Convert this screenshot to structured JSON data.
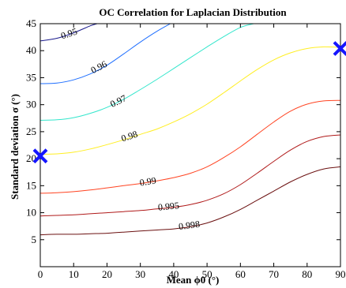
{
  "chart_data": {
    "type": "contour",
    "title": "OC Correlation for Laplacian Distribution",
    "xlabel": "Mean  ϕ0 (°)",
    "ylabel": "Standard deviation    σ (°)",
    "xlim": [
      0,
      90
    ],
    "ylim": [
      0,
      45
    ],
    "xticks": [
      0,
      10,
      20,
      30,
      40,
      50,
      60,
      70,
      80,
      90
    ],
    "yticks": [
      5,
      10,
      15,
      20,
      25,
      30,
      35,
      40,
      45
    ],
    "grid": false,
    "levels": [
      {
        "level": "0.95",
        "color": "#1a1a8c",
        "points": [
          [
            0,
            41.8
          ],
          [
            5,
            42.3
          ],
          [
            10,
            43.3
          ],
          [
            15,
            44.6
          ],
          [
            17,
            45
          ]
        ],
        "label_at": [
          8.7,
          43.0
        ]
      },
      {
        "level": "0.96",
        "color": "#1f6fff",
        "points": [
          [
            0,
            33.9
          ],
          [
            5,
            34
          ],
          [
            10,
            34.6
          ],
          [
            15,
            35.7
          ],
          [
            20,
            37.3
          ],
          [
            25,
            39.4
          ],
          [
            30,
            41.6
          ],
          [
            35,
            43.6
          ],
          [
            39,
            45
          ]
        ],
        "label_at": [
          17.7,
          36.8
        ]
      },
      {
        "level": "0.97",
        "color": "#33e6cc",
        "points": [
          [
            0,
            27.1
          ],
          [
            5,
            27.2
          ],
          [
            10,
            27.6
          ],
          [
            15,
            28.4
          ],
          [
            20,
            29.5
          ],
          [
            25,
            31
          ],
          [
            30,
            32.8
          ],
          [
            35,
            34.7
          ],
          [
            40,
            36.7
          ],
          [
            45,
            38.7
          ],
          [
            50,
            40.7
          ],
          [
            55,
            42.6
          ],
          [
            60,
            44.3
          ],
          [
            64,
            45
          ]
        ],
        "label_at": [
          23.5,
          30.5
        ]
      },
      {
        "level": "0.98",
        "color": "#ffee22",
        "points": [
          [
            0,
            20.8
          ],
          [
            5,
            20.9
          ],
          [
            10,
            21.2
          ],
          [
            15,
            21.8
          ],
          [
            20,
            22.6
          ],
          [
            25,
            23.5
          ],
          [
            30,
            24.5
          ],
          [
            35,
            25.5
          ],
          [
            40,
            26.8
          ],
          [
            45,
            28.3
          ],
          [
            50,
            30.1
          ],
          [
            55,
            32.2
          ],
          [
            60,
            34.4
          ],
          [
            65,
            36.5
          ],
          [
            70,
            38.3
          ],
          [
            75,
            39.6
          ],
          [
            80,
            40.4
          ],
          [
            85,
            40.7
          ],
          [
            90,
            40.6
          ]
        ],
        "label_at": [
          26.8,
          24.0
        ]
      },
      {
        "level": "0.99",
        "color": "#ff4422",
        "points": [
          [
            0,
            13.6
          ],
          [
            5,
            13.7
          ],
          [
            10,
            13.9
          ],
          [
            15,
            14.2
          ],
          [
            20,
            14.6
          ],
          [
            25,
            15
          ],
          [
            30,
            15.4
          ],
          [
            35,
            15.9
          ],
          [
            40,
            16.5
          ],
          [
            45,
            17.3
          ],
          [
            50,
            18.5
          ],
          [
            55,
            20.2
          ],
          [
            60,
            22.2
          ],
          [
            65,
            24.5
          ],
          [
            70,
            26.8
          ],
          [
            75,
            28.8
          ],
          [
            80,
            30.1
          ],
          [
            85,
            30.7
          ],
          [
            90,
            30.8
          ]
        ],
        "label_at": [
          32.3,
          15.6
        ]
      },
      {
        "level": "0.995",
        "color": "#b01a1a",
        "points": [
          [
            0,
            9.4
          ],
          [
            5,
            9.5
          ],
          [
            10,
            9.6
          ],
          [
            15,
            9.8
          ],
          [
            20,
            10
          ],
          [
            25,
            10.2
          ],
          [
            30,
            10.4
          ],
          [
            35,
            10.7
          ],
          [
            40,
            11
          ],
          [
            45,
            11.5
          ],
          [
            50,
            12.3
          ],
          [
            55,
            13.5
          ],
          [
            60,
            15.2
          ],
          [
            65,
            17.3
          ],
          [
            70,
            19.5
          ],
          [
            75,
            21.6
          ],
          [
            80,
            23.2
          ],
          [
            85,
            24.1
          ],
          [
            90,
            24.4
          ]
        ],
        "label_at": [
          38.5,
          11.0
        ]
      },
      {
        "level": "0.998",
        "color": "#6b1010",
        "points": [
          [
            0,
            5.9
          ],
          [
            5,
            6
          ],
          [
            10,
            6
          ],
          [
            15,
            6.1
          ],
          [
            20,
            6.2
          ],
          [
            25,
            6.4
          ],
          [
            30,
            6.6
          ],
          [
            35,
            6.8
          ],
          [
            40,
            7
          ],
          [
            45,
            7.4
          ],
          [
            50,
            8.1
          ],
          [
            55,
            9.2
          ],
          [
            60,
            10.6
          ],
          [
            65,
            12.3
          ],
          [
            70,
            14
          ],
          [
            75,
            15.7
          ],
          [
            80,
            17.1
          ],
          [
            85,
            18.1
          ],
          [
            90,
            18.5
          ]
        ],
        "label_at": [
          44.7,
          7.5
        ]
      }
    ],
    "markers": [
      {
        "symbol": "x",
        "x": 0,
        "y": 20.5,
        "color": "#1515ff"
      },
      {
        "symbol": "x",
        "x": 90,
        "y": 40.4,
        "color": "#1515ff"
      }
    ]
  }
}
